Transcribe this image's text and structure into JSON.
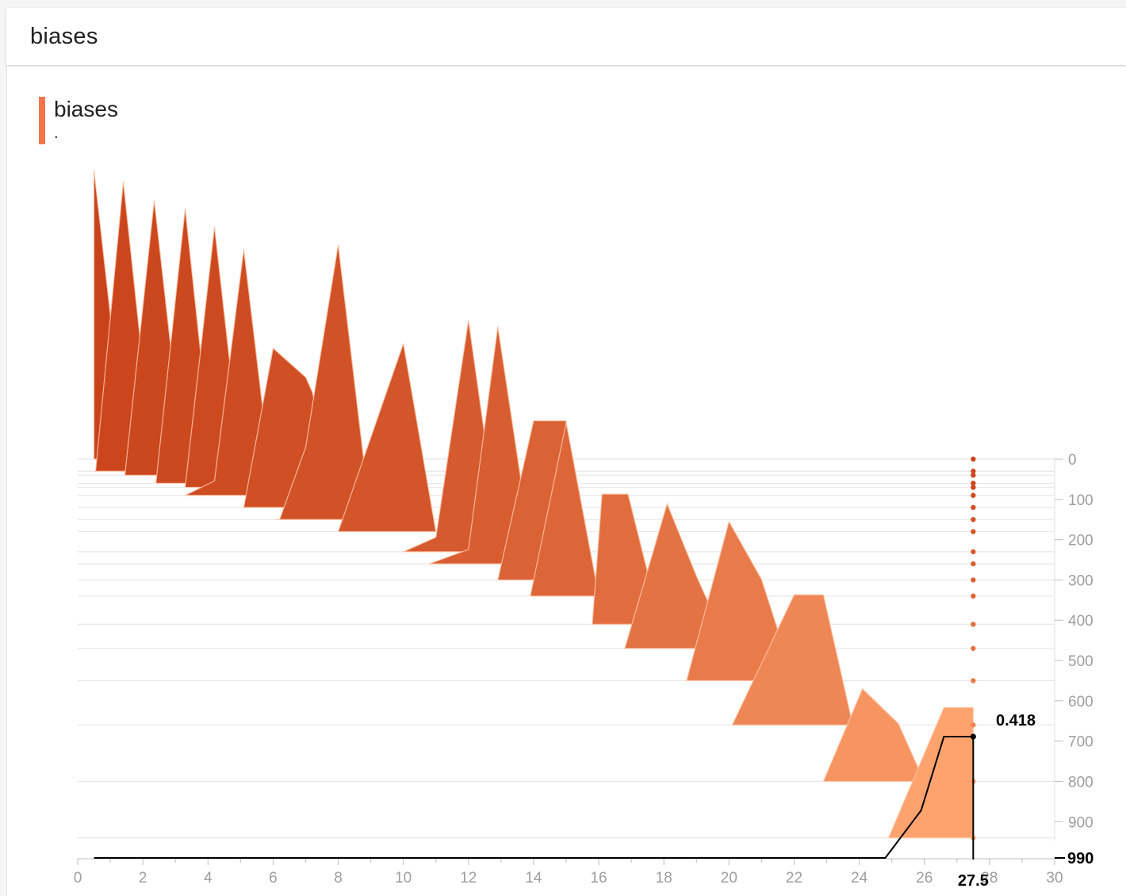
{
  "header": {
    "title": "biases"
  },
  "card": {
    "title": "biases",
    "subtitle": "."
  },
  "colors": {
    "accent": "#f4734a",
    "first_step": "#c9431a",
    "last_step": "#ffa36e",
    "grid": "#e6e6e6",
    "axis_text": "#9e9e9e",
    "hover": "#000000"
  },
  "chart_data": {
    "type": "area",
    "subtype": "histogram-offset",
    "title": "biases",
    "xlabel": "",
    "ylabel": "",
    "xlim": [
      0,
      30
    ],
    "step_lim": [
      0,
      990
    ],
    "x_ticks": [
      "0",
      "2",
      "4",
      "6",
      "8",
      "10",
      "12",
      "14",
      "16",
      "18",
      "20",
      "22",
      "24",
      "26",
      "28",
      "30"
    ],
    "step_ticks": [
      "0",
      "100",
      "200",
      "300",
      "400",
      "500",
      "600",
      "700",
      "800",
      "900"
    ],
    "series": [
      {
        "step": 0,
        "x": [
          0.5,
          0.5,
          1.5
        ],
        "y": [
          0,
          1,
          0
        ]
      },
      {
        "step": 30,
        "x": [
          0.55,
          1.4,
          2.35
        ],
        "y": [
          0,
          1,
          0
        ]
      },
      {
        "step": 40,
        "x": [
          1.45,
          2.35,
          3.3
        ],
        "y": [
          0,
          0.95,
          0
        ]
      },
      {
        "step": 60,
        "x": [
          2.4,
          3.3,
          4.2
        ],
        "y": [
          0,
          0.95,
          0
        ]
      },
      {
        "step": 70,
        "x": [
          3.3,
          4.2,
          5.1
        ],
        "y": [
          0,
          0.9,
          0
        ]
      },
      {
        "step": 90,
        "x": [
          3.3,
          4.2,
          5.1,
          6.0
        ],
        "y": [
          0,
          0.05,
          0.85,
          0
        ]
      },
      {
        "step": 120,
        "x": [
          5.1,
          6.0,
          7.0,
          7.2,
          8.1
        ],
        "y": [
          0,
          0.55,
          0.45,
          0.4,
          0
        ]
      },
      {
        "step": 150,
        "x": [
          6.05,
          6.2,
          7.0,
          8.0,
          9.0
        ],
        "y": [
          0,
          0.0,
          0.25,
          0.95,
          0
        ]
      },
      {
        "step": 180,
        "x": [
          8.0,
          10.0,
          11.0
        ],
        "y": [
          0,
          0.65,
          0
        ]
      },
      {
        "step": 230,
        "x": [
          10.0,
          11.0,
          12.0,
          13.0
        ],
        "y": [
          0,
          0.05,
          0.8,
          0
        ]
      },
      {
        "step": 260,
        "x": [
          10.8,
          12.0,
          12.9,
          14.0
        ],
        "y": [
          0,
          0.05,
          0.82,
          0
        ]
      },
      {
        "step": 300,
        "x": [
          12.9,
          14.0,
          15.0
        ],
        "y": [
          0,
          0.55,
          0.55
        ]
      },
      {
        "step": 340,
        "x": [
          13.9,
          15.0,
          16.0
        ],
        "y": [
          0,
          0.6,
          0
        ]
      },
      {
        "step": 410,
        "x": [
          15.8,
          16.1,
          16.9,
          17.9
        ],
        "y": [
          0,
          0.45,
          0.45,
          0
        ]
      },
      {
        "step": 470,
        "x": [
          16.8,
          18.1,
          19.0,
          20.0
        ],
        "y": [
          0,
          0.5,
          0.25,
          0
        ]
      },
      {
        "step": 550,
        "x": [
          18.7,
          20.0,
          21.0,
          22.0
        ],
        "y": [
          0,
          0.55,
          0.35,
          0
        ]
      },
      {
        "step": 660,
        "x": [
          20.1,
          22.0,
          22.9,
          23.8
        ],
        "y": [
          0,
          0.45,
          0.45,
          0
        ]
      },
      {
        "step": 800,
        "x": [
          22.9,
          24.1,
          25.2,
          26.0
        ],
        "y": [
          0,
          0.32,
          0.2,
          0
        ]
      },
      {
        "step": 940,
        "x": [
          24.9,
          26.6,
          27.5
        ],
        "y": [
          0,
          0.45,
          0.45
        ]
      }
    ],
    "hover": {
      "x": "27.5",
      "step": "990",
      "value": "0.418"
    }
  }
}
